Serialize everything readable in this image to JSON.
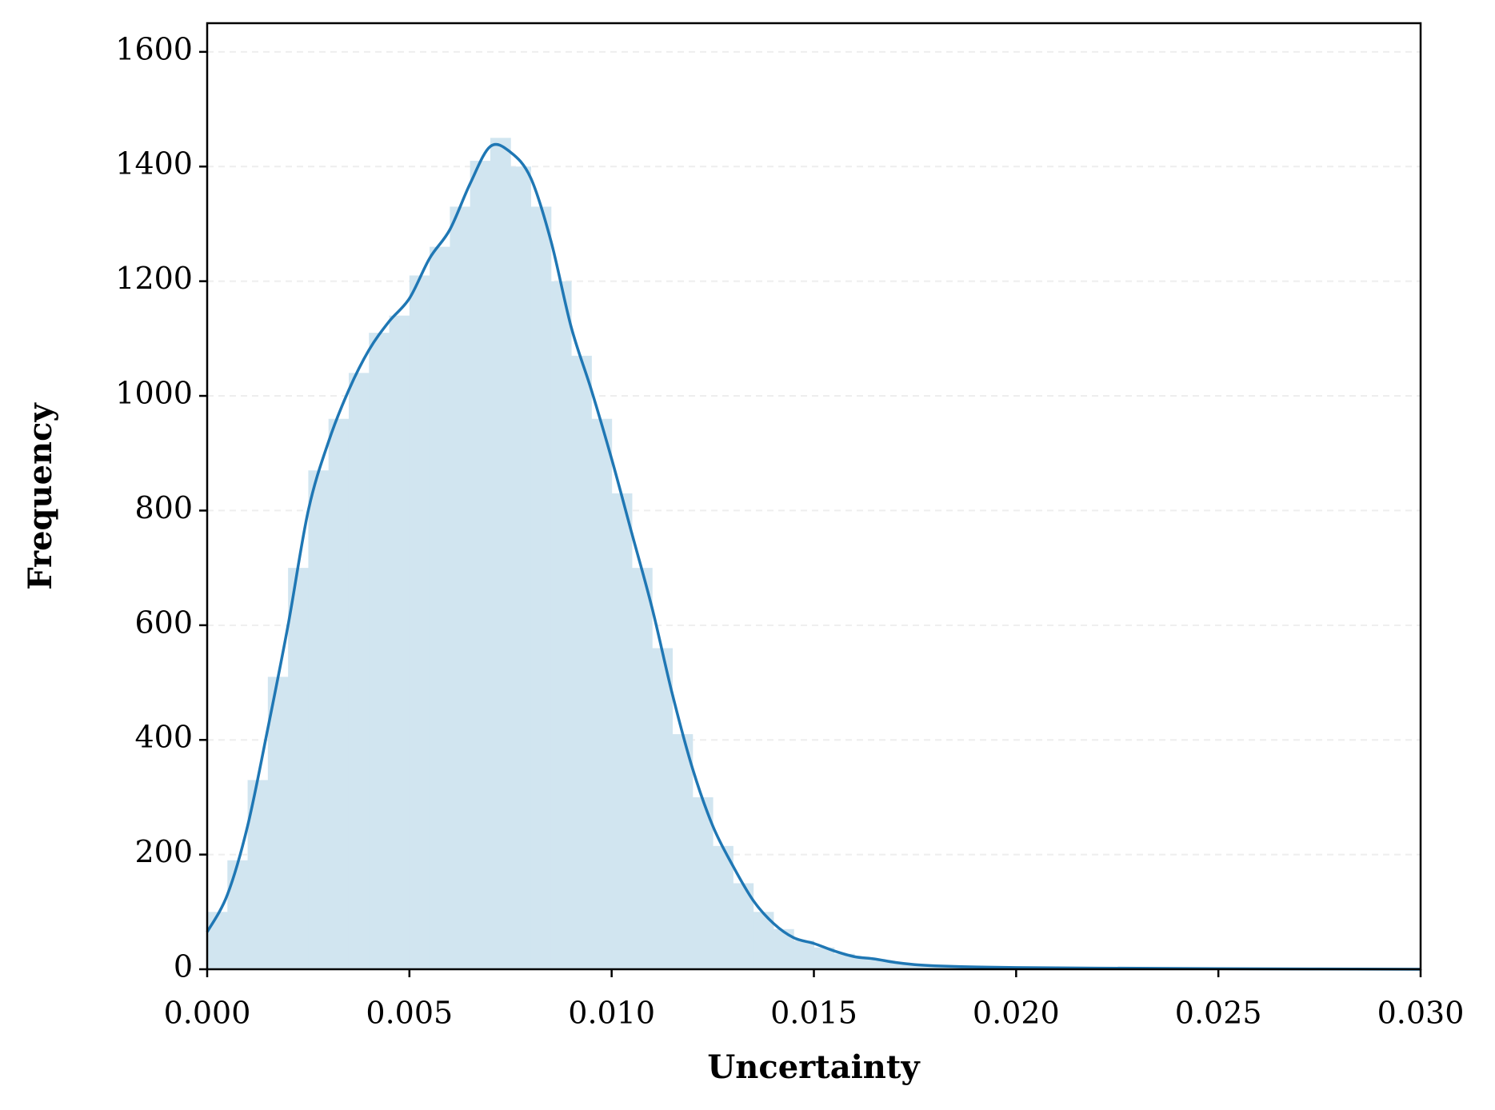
{
  "chart_data": {
    "type": "histogram",
    "x_label": "Uncertainty",
    "y_label": "Frequency",
    "color": "#d1e5f0",
    "bins": [
      0,
      0.0005,
      0.001,
      0.0015,
      0.002,
      0.0025,
      0.003,
      0.0035,
      0.004,
      0.0045,
      0.005,
      0.0055,
      0.006,
      0.0065,
      0.007,
      0.0075,
      0.008,
      0.0085,
      0.009,
      0.0095,
      0.01,
      0.0105,
      0.011,
      0.0115,
      0.012,
      0.0125,
      0.013,
      0.0135,
      0.014,
      0.0145,
      0.015,
      0.0155,
      0.016,
      0.0165,
      0.017,
      0.0175,
      0.018,
      0.0185,
      0.019,
      0.0195,
      0.02,
      0.0205,
      0.021,
      0.0215,
      0.022,
      0.0225,
      0.023,
      0.0235,
      0.024,
      0.0245,
      0.025,
      0.0255,
      0.026,
      0.0265,
      0.027,
      0.0275,
      0.028,
      0.0285,
      0.029,
      0.0295,
      0.03
    ],
    "counts": [
      100,
      190,
      330,
      510,
      700,
      870,
      960,
      1040,
      1110,
      1140,
      1210,
      1260,
      1330,
      1410,
      1450,
      1400,
      1330,
      1200,
      1070,
      960,
      830,
      700,
      560,
      410,
      300,
      215,
      150,
      100,
      70,
      50,
      38,
      27,
      20,
      15,
      10,
      7,
      6,
      5,
      4,
      4,
      3,
      3,
      3,
      2,
      2,
      2,
      2,
      1,
      1,
      1,
      1,
      1,
      1,
      0,
      0,
      0,
      0,
      0,
      0,
      0
    ],
    "kde": {
      "type": "line",
      "color": "#1f77b4",
      "x": [
        0,
        0.0005,
        0.001,
        0.0015,
        0.002,
        0.0025,
        0.003,
        0.0035,
        0.004,
        0.0045,
        0.005,
        0.0055,
        0.006,
        0.0065,
        0.007,
        0.0075,
        0.008,
        0.0085,
        0.009,
        0.0095,
        0.01,
        0.0105,
        0.011,
        0.0115,
        0.012,
        0.0125,
        0.013,
        0.0135,
        0.014,
        0.0145,
        0.015,
        0.0155,
        0.016,
        0.0165,
        0.017,
        0.0175,
        0.018,
        0.019,
        0.02,
        0.022,
        0.025,
        0.03
      ],
      "values": [
        65,
        130,
        250,
        420,
        600,
        800,
        920,
        1010,
        1080,
        1130,
        1170,
        1240,
        1290,
        1370,
        1435,
        1425,
        1380,
        1270,
        1120,
        1010,
        890,
        760,
        630,
        480,
        350,
        250,
        180,
        120,
        80,
        55,
        45,
        32,
        22,
        18,
        12,
        8,
        6,
        4,
        3,
        2,
        1,
        0
      ]
    },
    "xlim": [
      0,
      0.03
    ],
    "ylim": [
      0,
      1650
    ],
    "xticks": [
      {
        "value": 0,
        "label": "0.000"
      },
      {
        "value": 0.005,
        "label": "0.005"
      },
      {
        "value": 0.01,
        "label": "0.010"
      },
      {
        "value": 0.015,
        "label": "0.015"
      },
      {
        "value": 0.02,
        "label": "0.020"
      },
      {
        "value": 0.025,
        "label": "0.025"
      },
      {
        "value": 0.03,
        "label": "0.030"
      }
    ],
    "yticks": [
      0,
      200,
      400,
      600,
      800,
      1000,
      1200,
      1400,
      1600
    ],
    "grid": true
  }
}
